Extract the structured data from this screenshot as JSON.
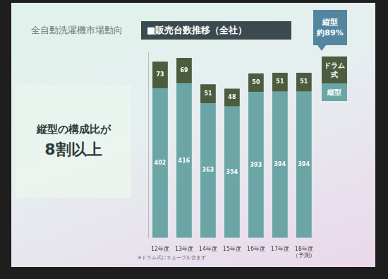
{
  "chart_data": {
    "type": "bar",
    "title": "全自動洗濯機市場動向",
    "subtitle": "■販売台数推移（全社）",
    "left_panel": [
      "縦型の構成比が",
      "8割以上"
    ],
    "callout": [
      "縦型",
      "約89%"
    ],
    "note": "※ドラム式にキューブル含まず",
    "categories": [
      "12年度",
      "13年度",
      "14年度",
      "15年度",
      "16年度",
      "17年度",
      "18年度（予測）"
    ],
    "series": [
      {
        "name": "縦型",
        "color": "#6ba5a6",
        "values": [
          402,
          416,
          363,
          354,
          393,
          394,
          394
        ]
      },
      {
        "name": "ドラム式",
        "color": "#4b5d3e",
        "values": [
          73,
          69,
          51,
          48,
          50,
          51,
          51
        ]
      }
    ],
    "stacked": true,
    "data_labels": true,
    "grid": false,
    "legend": "right",
    "tick_labels": "x",
    "ylim": [
      0,
      500
    ],
    "yticks": []
  }
}
